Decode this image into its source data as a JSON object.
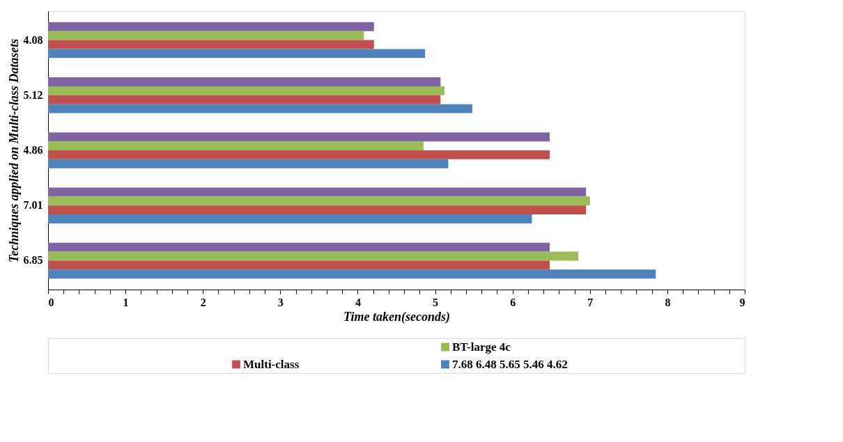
{
  "chart_data": {
    "type": "bar",
    "orientation": "horizontal",
    "categories": [
      "4.08",
      "5.12",
      "4.86",
      "7.01",
      "6.85"
    ],
    "series": [
      {
        "color": "#8064a2",
        "values": [
          4.21,
          5.07,
          6.48,
          6.95,
          6.48
        ]
      },
      {
        "name": "BT-large 4c",
        "color": "#9bbb59",
        "values": [
          4.08,
          5.12,
          4.85,
          7.0,
          6.85
        ]
      },
      {
        "name": "Multi-class",
        "color": "#c0504d",
        "values": [
          4.21,
          5.07,
          6.48,
          6.95,
          6.48
        ]
      },
      {
        "name": "7.68 6.48 5.65 5.46 4.62",
        "color": "#4f81bd",
        "values": [
          4.87,
          5.48,
          5.17,
          6.25,
          7.85
        ]
      }
    ],
    "xlabel": "Time taken(seconds)",
    "ylabel": "Techniques applied on Multi-class Datasets",
    "xlim": [
      0,
      9
    ],
    "xticks": [
      0,
      {
        "value": 0.2,
        "label": null
      },
      {
        "value": 0.4,
        "label": null
      },
      {
        "value": 0.6,
        "label": null
      },
      {
        "value": 0.8,
        "label": null
      },
      1,
      {
        "value": 1.2,
        "label": null
      },
      {
        "value": 1.4,
        "label": null
      },
      {
        "value": 1.6,
        "label": null
      },
      {
        "value": 1.8,
        "label": null
      },
      2,
      {
        "value": 2.2,
        "label": null
      },
      {
        "value": 2.4,
        "label": null
      },
      {
        "value": 2.6,
        "label": null
      },
      {
        "value": 2.8,
        "label": null
      },
      3,
      {
        "value": 3.2,
        "label": null
      },
      {
        "value": 3.4,
        "label": null
      },
      {
        "value": 3.6,
        "label": null
      },
      {
        "value": 3.8,
        "label": null
      },
      4,
      {
        "value": 4.2,
        "label": null
      },
      {
        "value": 4.4,
        "label": null
      },
      {
        "value": 4.6,
        "label": null
      },
      {
        "value": 4.8,
        "label": null
      },
      5,
      {
        "value": 5.2,
        "label": null
      },
      {
        "value": 5.4,
        "label": null
      },
      {
        "value": 5.6,
        "label": null
      },
      {
        "value": 5.8,
        "label": null
      },
      6,
      {
        "value": 6.2,
        "label": null
      },
      {
        "value": 6.4,
        "label": null
      },
      {
        "value": 6.6,
        "label": null
      },
      {
        "value": 6.8,
        "label": null
      },
      7,
      {
        "value": 7.2,
        "label": null
      },
      {
        "value": 7.4,
        "label": null
      },
      {
        "value": 7.6,
        "label": null
      },
      {
        "value": 7.8,
        "label": null
      },
      8,
      {
        "value": 8.2,
        "label": null
      },
      {
        "value": 8.4,
        "label": null
      },
      {
        "value": 8.6,
        "label": null
      },
      {
        "value": 8.8,
        "label": null
      },
      9
    ],
    "grid": false,
    "legend": "bottom"
  }
}
